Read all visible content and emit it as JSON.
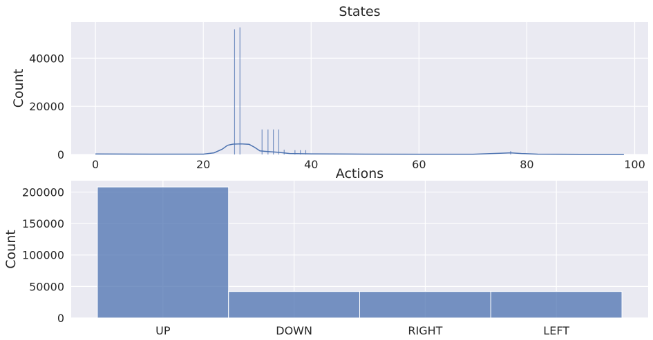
{
  "chart_data": [
    {
      "type": "histogram",
      "title": "States",
      "xlabel": "",
      "ylabel": "Count",
      "xlim": [
        -4.5,
        102.5
      ],
      "ylim": [
        0,
        55000
      ],
      "xticks": [
        "0",
        "20",
        "40",
        "60",
        "80",
        "100"
      ],
      "xtick_values": [
        0,
        20,
        40,
        60,
        80,
        100
      ],
      "yticks": [
        "0",
        "20000",
        "40000"
      ],
      "ytick_values": [
        0,
        20000,
        40000
      ],
      "grid": true,
      "bar_color": "#4c72b0",
      "bars": [
        {
          "x": 0.5,
          "value": 300
        },
        {
          "x": 2,
          "value": 250
        },
        {
          "x": 25.8,
          "value": 52000
        },
        {
          "x": 26.8,
          "value": 52800
        },
        {
          "x": 30.9,
          "value": 10400
        },
        {
          "x": 32,
          "value": 10400
        },
        {
          "x": 33,
          "value": 10400
        },
        {
          "x": 34,
          "value": 10400
        },
        {
          "x": 35,
          "value": 2000
        },
        {
          "x": 37,
          "value": 1800
        },
        {
          "x": 38,
          "value": 1800
        },
        {
          "x": 39,
          "value": 1800
        },
        {
          "x": 44,
          "value": 400
        },
        {
          "x": 77,
          "value": 1400
        }
      ],
      "kde": [
        [
          0,
          200
        ],
        [
          10,
          150
        ],
        [
          20,
          150
        ],
        [
          22,
          700
        ],
        [
          23.5,
          2200
        ],
        [
          24.5,
          3800
        ],
        [
          25.5,
          4300
        ],
        [
          27,
          4400
        ],
        [
          28.5,
          4200
        ],
        [
          29.5,
          3000
        ],
        [
          30.5,
          1500
        ],
        [
          32,
          1200
        ],
        [
          34,
          900
        ],
        [
          36,
          400
        ],
        [
          40,
          250
        ],
        [
          50,
          150
        ],
        [
          60,
          120
        ],
        [
          70,
          120
        ],
        [
          75,
          500
        ],
        [
          77,
          700
        ],
        [
          79,
          400
        ],
        [
          82,
          150
        ],
        [
          90,
          100
        ],
        [
          98,
          80
        ]
      ]
    },
    {
      "type": "bar",
      "title": "Actions",
      "xlabel": "",
      "ylabel": "Count",
      "categories": [
        "UP",
        "DOWN",
        "RIGHT",
        "LEFT"
      ],
      "values": [
        208000,
        42000,
        42000,
        42000
      ],
      "ylim": [
        0,
        218000
      ],
      "yticks": [
        "0",
        "50000",
        "100000",
        "150000",
        "200000"
      ],
      "ytick_values": [
        0,
        50000,
        100000,
        150000,
        200000
      ],
      "grid": true,
      "bar_color": "#4c72b0"
    }
  ]
}
